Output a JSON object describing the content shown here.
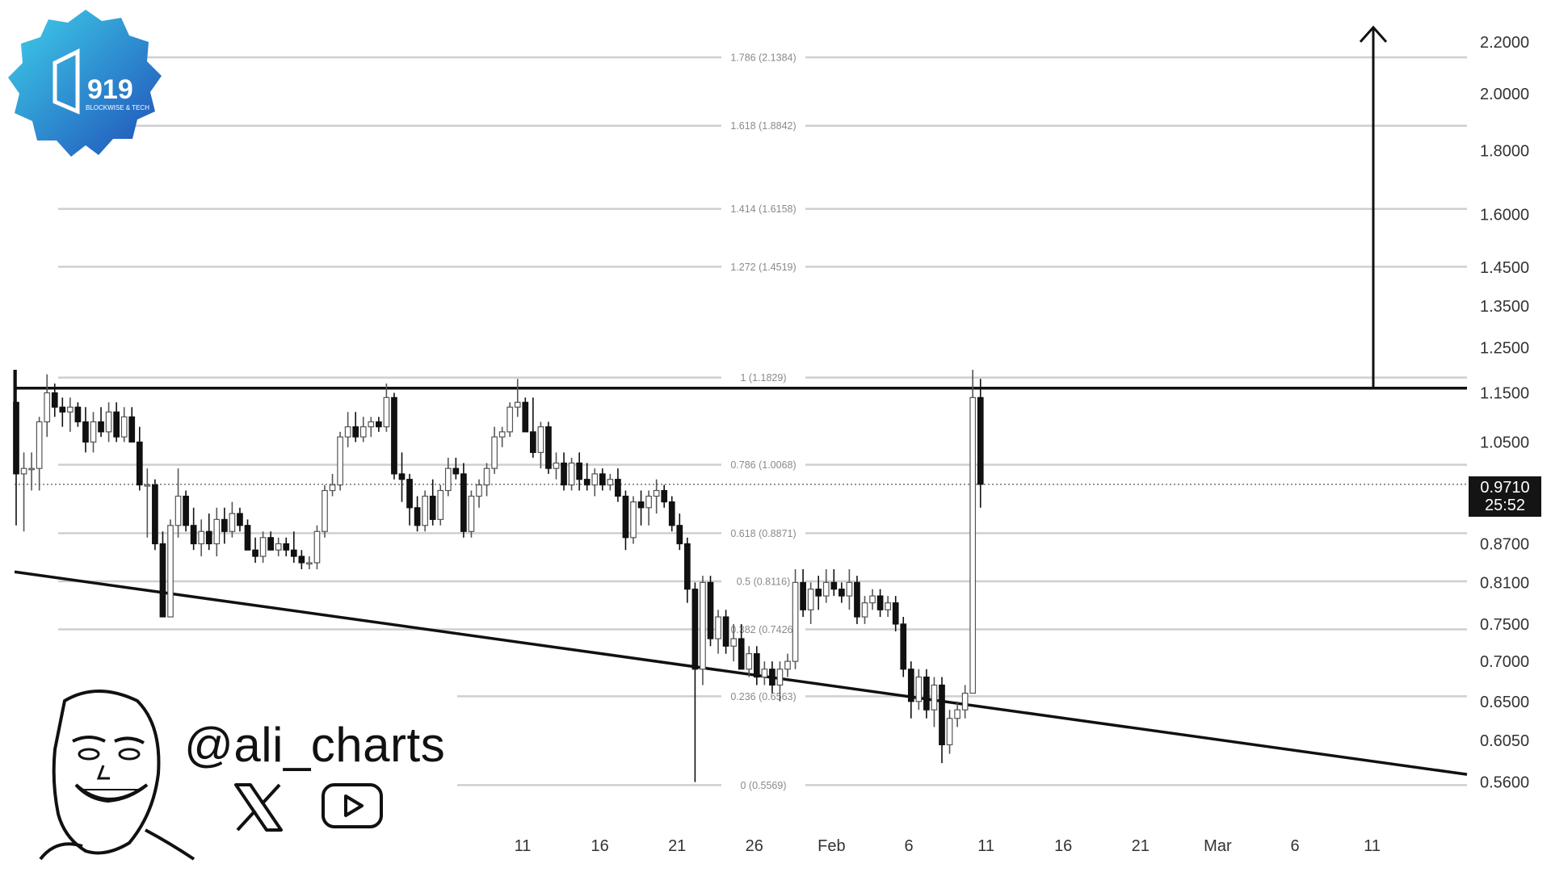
{
  "branding": {
    "logo_text": "919",
    "logo_subtext": "BLOCKWISE & TECH",
    "handle": "@ali_charts",
    "icons": [
      "x-logo-icon",
      "youtube-icon"
    ]
  },
  "current_price": {
    "value": "0.9710",
    "countdown": "25:52"
  },
  "chart_data": {
    "type": "candlestick",
    "title": "",
    "y_scale": "log",
    "ylim": [
      0.54,
      2.28
    ],
    "y_ticks": [
      "2.2000",
      "2.0000",
      "1.8000",
      "1.6000",
      "1.4500",
      "1.3500",
      "1.2500",
      "1.1500",
      "1.0500",
      "0.8700",
      "0.8100",
      "0.7500",
      "0.7000",
      "0.6500",
      "0.6050",
      "0.5600"
    ],
    "x_ticks": [
      "11",
      "16",
      "21",
      "26",
      "Feb",
      "6",
      "11",
      "16",
      "21",
      "Mar",
      "6",
      "11"
    ],
    "fib_levels": [
      {
        "ratio": 0,
        "price": 0.5569,
        "label": "0 (0.5569)"
      },
      {
        "ratio": 0.236,
        "price": 0.6563,
        "label": "0.236 (0.6563)"
      },
      {
        "ratio": 0.382,
        "price": 0.7426,
        "label": "0.382 (0.7426)"
      },
      {
        "ratio": 0.5,
        "price": 0.8116,
        "label": "0.5 (0.8116)"
      },
      {
        "ratio": 0.618,
        "price": 0.8871,
        "label": "0.618 (0.8871)"
      },
      {
        "ratio": 0.786,
        "price": 1.0068,
        "label": "0.786 (1.0068)"
      },
      {
        "ratio": 1,
        "price": 1.1829,
        "label": "1 (1.1829)"
      },
      {
        "ratio": 1.272,
        "price": 1.4519,
        "label": "1.272 (1.4519)"
      },
      {
        "ratio": 1.414,
        "price": 1.6158,
        "label": "1.414 (1.6158)"
      },
      {
        "ratio": 1.618,
        "price": 1.8842,
        "label": "1.618 (1.8842)"
      },
      {
        "ratio": 1.786,
        "price": 2.1384,
        "label": "1.786 (2.1384)"
      }
    ],
    "resistance_line_price": 1.16,
    "support_trendline": [
      {
        "day": 0,
        "price": 0.826
      },
      {
        "day": 62.5,
        "price": 0.568
      }
    ],
    "target_arrow": {
      "day": 59.5,
      "from_price": 1.16,
      "to_price": 2.26
    },
    "current_price_line": 0.971,
    "candles": [
      {
        "d": 0.0,
        "o": 1.13,
        "h": 1.2,
        "l": 0.9,
        "c": 0.99
      },
      {
        "d": 0.5,
        "o": 0.99,
        "h": 1.03,
        "l": 0.89,
        "c": 1.0
      },
      {
        "d": 1.0,
        "o": 1.0,
        "h": 1.03,
        "l": 0.96,
        "c": 1.0
      },
      {
        "d": 1.5,
        "o": 1.0,
        "h": 1.1,
        "l": 0.96,
        "c": 1.09
      },
      {
        "d": 2.0,
        "o": 1.09,
        "h": 1.19,
        "l": 1.06,
        "c": 1.15
      },
      {
        "d": 2.5,
        "o": 1.15,
        "h": 1.17,
        "l": 1.1,
        "c": 1.12
      },
      {
        "d": 3.0,
        "o": 1.12,
        "h": 1.14,
        "l": 1.08,
        "c": 1.11
      },
      {
        "d": 3.5,
        "o": 1.11,
        "h": 1.14,
        "l": 1.07,
        "c": 1.12
      },
      {
        "d": 4.0,
        "o": 1.12,
        "h": 1.13,
        "l": 1.08,
        "c": 1.09
      },
      {
        "d": 4.5,
        "o": 1.09,
        "h": 1.12,
        "l": 1.03,
        "c": 1.05
      },
      {
        "d": 5.0,
        "o": 1.05,
        "h": 1.11,
        "l": 1.03,
        "c": 1.09
      },
      {
        "d": 5.5,
        "o": 1.09,
        "h": 1.12,
        "l": 1.06,
        "c": 1.07
      },
      {
        "d": 6.0,
        "o": 1.07,
        "h": 1.13,
        "l": 1.05,
        "c": 1.11
      },
      {
        "d": 6.5,
        "o": 1.11,
        "h": 1.13,
        "l": 1.05,
        "c": 1.06
      },
      {
        "d": 7.0,
        "o": 1.06,
        "h": 1.12,
        "l": 1.05,
        "c": 1.1
      },
      {
        "d": 7.5,
        "o": 1.1,
        "h": 1.12,
        "l": 1.05,
        "c": 1.05
      },
      {
        "d": 8.0,
        "o": 1.05,
        "h": 1.08,
        "l": 0.96,
        "c": 0.97
      },
      {
        "d": 8.5,
        "o": 0.97,
        "h": 1.0,
        "l": 0.88,
        "c": 0.97
      },
      {
        "d": 9.0,
        "o": 0.97,
        "h": 0.98,
        "l": 0.86,
        "c": 0.87
      },
      {
        "d": 9.5,
        "o": 0.87,
        "h": 0.89,
        "l": 0.76,
        "c": 0.76
      },
      {
        "d": 10.0,
        "o": 0.76,
        "h": 0.91,
        "l": 0.76,
        "c": 0.9
      },
      {
        "d": 10.5,
        "o": 0.9,
        "h": 1.0,
        "l": 0.88,
        "c": 0.95
      },
      {
        "d": 11.0,
        "o": 0.95,
        "h": 0.96,
        "l": 0.89,
        "c": 0.9
      },
      {
        "d": 11.5,
        "o": 0.9,
        "h": 0.93,
        "l": 0.86,
        "c": 0.87
      },
      {
        "d": 12.0,
        "o": 0.87,
        "h": 0.91,
        "l": 0.85,
        "c": 0.89
      },
      {
        "d": 12.5,
        "o": 0.89,
        "h": 0.92,
        "l": 0.86,
        "c": 0.87
      },
      {
        "d": 13.0,
        "o": 0.87,
        "h": 0.93,
        "l": 0.85,
        "c": 0.91
      },
      {
        "d": 13.5,
        "o": 0.91,
        "h": 0.93,
        "l": 0.87,
        "c": 0.89
      },
      {
        "d": 14.0,
        "o": 0.89,
        "h": 0.94,
        "l": 0.88,
        "c": 0.92
      },
      {
        "d": 14.5,
        "o": 0.92,
        "h": 0.93,
        "l": 0.89,
        "c": 0.9
      },
      {
        "d": 15.0,
        "o": 0.9,
        "h": 0.91,
        "l": 0.86,
        "c": 0.86
      },
      {
        "d": 15.5,
        "o": 0.86,
        "h": 0.88,
        "l": 0.84,
        "c": 0.85
      },
      {
        "d": 16.0,
        "o": 0.85,
        "h": 0.89,
        "l": 0.84,
        "c": 0.88
      },
      {
        "d": 16.5,
        "o": 0.88,
        "h": 0.89,
        "l": 0.86,
        "c": 0.86
      },
      {
        "d": 17.0,
        "o": 0.86,
        "h": 0.88,
        "l": 0.85,
        "c": 0.87
      },
      {
        "d": 17.5,
        "o": 0.87,
        "h": 0.88,
        "l": 0.85,
        "c": 0.86
      },
      {
        "d": 18.0,
        "o": 0.86,
        "h": 0.89,
        "l": 0.84,
        "c": 0.85
      },
      {
        "d": 18.5,
        "o": 0.85,
        "h": 0.86,
        "l": 0.83,
        "c": 0.84
      },
      {
        "d": 19.0,
        "o": 0.84,
        "h": 0.85,
        "l": 0.83,
        "c": 0.84
      },
      {
        "d": 19.5,
        "o": 0.84,
        "h": 0.9,
        "l": 0.83,
        "c": 0.89
      },
      {
        "d": 20.0,
        "o": 0.89,
        "h": 0.97,
        "l": 0.88,
        "c": 0.96
      },
      {
        "d": 20.5,
        "o": 0.96,
        "h": 0.99,
        "l": 0.95,
        "c": 0.97
      },
      {
        "d": 21.0,
        "o": 0.97,
        "h": 1.07,
        "l": 0.96,
        "c": 1.06
      },
      {
        "d": 21.5,
        "o": 1.06,
        "h": 1.11,
        "l": 1.04,
        "c": 1.08
      },
      {
        "d": 22.0,
        "o": 1.08,
        "h": 1.11,
        "l": 1.05,
        "c": 1.06
      },
      {
        "d": 22.5,
        "o": 1.06,
        "h": 1.1,
        "l": 1.05,
        "c": 1.08
      },
      {
        "d": 23.0,
        "o": 1.08,
        "h": 1.1,
        "l": 1.06,
        "c": 1.09
      },
      {
        "d": 23.5,
        "o": 1.09,
        "h": 1.1,
        "l": 1.07,
        "c": 1.08
      },
      {
        "d": 24.0,
        "o": 1.08,
        "h": 1.17,
        "l": 1.07,
        "c": 1.14
      },
      {
        "d": 24.5,
        "o": 1.14,
        "h": 1.15,
        "l": 0.98,
        "c": 0.99
      },
      {
        "d": 25.0,
        "o": 0.99,
        "h": 1.03,
        "l": 0.94,
        "c": 0.98
      },
      {
        "d": 25.5,
        "o": 0.98,
        "h": 0.99,
        "l": 0.9,
        "c": 0.93
      },
      {
        "d": 26.0,
        "o": 0.93,
        "h": 0.95,
        "l": 0.89,
        "c": 0.9
      },
      {
        "d": 26.5,
        "o": 0.9,
        "h": 0.96,
        "l": 0.89,
        "c": 0.95
      },
      {
        "d": 27.0,
        "o": 0.95,
        "h": 0.98,
        "l": 0.9,
        "c": 0.91
      },
      {
        "d": 27.5,
        "o": 0.91,
        "h": 0.97,
        "l": 0.9,
        "c": 0.96
      },
      {
        "d": 28.0,
        "o": 0.96,
        "h": 1.02,
        "l": 0.95,
        "c": 1.0
      },
      {
        "d": 28.5,
        "o": 1.0,
        "h": 1.02,
        "l": 0.98,
        "c": 0.99
      },
      {
        "d": 29.0,
        "o": 0.99,
        "h": 1.01,
        "l": 0.88,
        "c": 0.89
      },
      {
        "d": 29.5,
        "o": 0.89,
        "h": 0.96,
        "l": 0.88,
        "c": 0.95
      },
      {
        "d": 30.0,
        "o": 0.95,
        "h": 0.98,
        "l": 0.93,
        "c": 0.97
      },
      {
        "d": 30.5,
        "o": 0.97,
        "h": 1.01,
        "l": 0.95,
        "c": 1.0
      },
      {
        "d": 31.0,
        "o": 1.0,
        "h": 1.08,
        "l": 0.99,
        "c": 1.06
      },
      {
        "d": 31.5,
        "o": 1.06,
        "h": 1.08,
        "l": 1.04,
        "c": 1.07
      },
      {
        "d": 32.0,
        "o": 1.07,
        "h": 1.13,
        "l": 1.06,
        "c": 1.12
      },
      {
        "d": 32.5,
        "o": 1.12,
        "h": 1.18,
        "l": 1.1,
        "c": 1.13
      },
      {
        "d": 33.0,
        "o": 1.13,
        "h": 1.14,
        "l": 1.07,
        "c": 1.07
      },
      {
        "d": 33.5,
        "o": 1.07,
        "h": 1.14,
        "l": 1.02,
        "c": 1.03
      },
      {
        "d": 34.0,
        "o": 1.03,
        "h": 1.09,
        "l": 1.0,
        "c": 1.08
      },
      {
        "d": 34.5,
        "o": 1.08,
        "h": 1.09,
        "l": 0.99,
        "c": 1.0
      },
      {
        "d": 35.0,
        "o": 1.0,
        "h": 1.03,
        "l": 0.98,
        "c": 1.01
      },
      {
        "d": 35.5,
        "o": 1.01,
        "h": 1.03,
        "l": 0.96,
        "c": 0.97
      },
      {
        "d": 36.0,
        "o": 0.97,
        "h": 1.02,
        "l": 0.96,
        "c": 1.01
      },
      {
        "d": 36.5,
        "o": 1.01,
        "h": 1.03,
        "l": 0.96,
        "c": 0.98
      },
      {
        "d": 37.0,
        "o": 0.98,
        "h": 1.01,
        "l": 0.96,
        "c": 0.97
      },
      {
        "d": 37.5,
        "o": 0.97,
        "h": 1.0,
        "l": 0.95,
        "c": 0.99
      },
      {
        "d": 38.0,
        "o": 0.99,
        "h": 1.0,
        "l": 0.96,
        "c": 0.97
      },
      {
        "d": 38.5,
        "o": 0.97,
        "h": 0.99,
        "l": 0.96,
        "c": 0.98
      },
      {
        "d": 39.0,
        "o": 0.98,
        "h": 1.0,
        "l": 0.94,
        "c": 0.95
      },
      {
        "d": 39.5,
        "o": 0.95,
        "h": 0.96,
        "l": 0.86,
        "c": 0.88
      },
      {
        "d": 40.0,
        "o": 0.88,
        "h": 0.95,
        "l": 0.87,
        "c": 0.94
      },
      {
        "d": 40.5,
        "o": 0.94,
        "h": 0.96,
        "l": 0.9,
        "c": 0.93
      },
      {
        "d": 41.0,
        "o": 0.93,
        "h": 0.96,
        "l": 0.9,
        "c": 0.95
      },
      {
        "d": 41.5,
        "o": 0.95,
        "h": 0.98,
        "l": 0.92,
        "c": 0.96
      },
      {
        "d": 42.0,
        "o": 0.96,
        "h": 0.97,
        "l": 0.93,
        "c": 0.94
      },
      {
        "d": 42.5,
        "o": 0.94,
        "h": 0.95,
        "l": 0.89,
        "c": 0.9
      },
      {
        "d": 43.0,
        "o": 0.9,
        "h": 0.92,
        "l": 0.86,
        "c": 0.87
      },
      {
        "d": 43.5,
        "o": 0.87,
        "h": 0.88,
        "l": 0.78,
        "c": 0.8
      },
      {
        "d": 44.0,
        "o": 0.8,
        "h": 0.81,
        "l": 0.56,
        "c": 0.69
      },
      {
        "d": 44.5,
        "o": 0.69,
        "h": 0.82,
        "l": 0.67,
        "c": 0.81
      },
      {
        "d": 45.0,
        "o": 0.81,
        "h": 0.82,
        "l": 0.72,
        "c": 0.73
      },
      {
        "d": 45.5,
        "o": 0.73,
        "h": 0.77,
        "l": 0.71,
        "c": 0.76
      },
      {
        "d": 46.0,
        "o": 0.76,
        "h": 0.77,
        "l": 0.71,
        "c": 0.72
      },
      {
        "d": 46.5,
        "o": 0.72,
        "h": 0.75,
        "l": 0.7,
        "c": 0.73
      },
      {
        "d": 47.0,
        "o": 0.73,
        "h": 0.75,
        "l": 0.69,
        "c": 0.69
      },
      {
        "d": 47.5,
        "o": 0.69,
        "h": 0.72,
        "l": 0.68,
        "c": 0.71
      },
      {
        "d": 48.0,
        "o": 0.71,
        "h": 0.72,
        "l": 0.67,
        "c": 0.68
      },
      {
        "d": 48.5,
        "o": 0.68,
        "h": 0.7,
        "l": 0.67,
        "c": 0.69
      },
      {
        "d": 49.0,
        "o": 0.69,
        "h": 0.7,
        "l": 0.66,
        "c": 0.67
      },
      {
        "d": 49.5,
        "o": 0.67,
        "h": 0.7,
        "l": 0.65,
        "c": 0.69
      },
      {
        "d": 50.0,
        "o": 0.69,
        "h": 0.71,
        "l": 0.68,
        "c": 0.7
      },
      {
        "d": 50.5,
        "o": 0.7,
        "h": 0.83,
        "l": 0.69,
        "c": 0.81
      },
      {
        "d": 51.0,
        "o": 0.81,
        "h": 0.83,
        "l": 0.76,
        "c": 0.77
      },
      {
        "d": 51.5,
        "o": 0.77,
        "h": 0.81,
        "l": 0.75,
        "c": 0.8
      },
      {
        "d": 52.0,
        "o": 0.8,
        "h": 0.82,
        "l": 0.77,
        "c": 0.79
      },
      {
        "d": 52.5,
        "o": 0.79,
        "h": 0.83,
        "l": 0.78,
        "c": 0.81
      },
      {
        "d": 53.0,
        "o": 0.81,
        "h": 0.83,
        "l": 0.79,
        "c": 0.8
      },
      {
        "d": 53.5,
        "o": 0.8,
        "h": 0.81,
        "l": 0.78,
        "c": 0.79
      },
      {
        "d": 54.0,
        "o": 0.79,
        "h": 0.83,
        "l": 0.77,
        "c": 0.81
      },
      {
        "d": 54.5,
        "o": 0.81,
        "h": 0.82,
        "l": 0.75,
        "c": 0.76
      },
      {
        "d": 55.0,
        "o": 0.76,
        "h": 0.79,
        "l": 0.75,
        "c": 0.78
      },
      {
        "d": 55.5,
        "o": 0.78,
        "h": 0.8,
        "l": 0.77,
        "c": 0.79
      },
      {
        "d": 56.0,
        "o": 0.79,
        "h": 0.8,
        "l": 0.76,
        "c": 0.77
      },
      {
        "d": 56.5,
        "o": 0.77,
        "h": 0.79,
        "l": 0.76,
        "c": 0.78
      },
      {
        "d": 57.0,
        "o": 0.78,
        "h": 0.79,
        "l": 0.74,
        "c": 0.75
      },
      {
        "d": 57.5,
        "o": 0.75,
        "h": 0.76,
        "l": 0.68,
        "c": 0.69
      },
      {
        "d": 58.0,
        "o": 0.69,
        "h": 0.7,
        "l": 0.63,
        "c": 0.65
      },
      {
        "d": 58.5,
        "o": 0.65,
        "h": 0.69,
        "l": 0.64,
        "c": 0.68
      },
      {
        "d": 59.0,
        "o": 0.68,
        "h": 0.69,
        "l": 0.63,
        "c": 0.64
      },
      {
        "d": 59.5,
        "o": 0.64,
        "h": 0.68,
        "l": 0.62,
        "c": 0.67
      },
      {
        "d": 60.0,
        "o": 0.67,
        "h": 0.68,
        "l": 0.58,
        "c": 0.6
      },
      {
        "d": 60.5,
        "o": 0.6,
        "h": 0.64,
        "l": 0.59,
        "c": 0.63
      },
      {
        "d": 61.0,
        "o": 0.63,
        "h": 0.65,
        "l": 0.62,
        "c": 0.64
      },
      {
        "d": 61.5,
        "o": 0.64,
        "h": 0.67,
        "l": 0.63,
        "c": 0.66
      },
      {
        "d": 62.0,
        "o": 0.66,
        "h": 1.2,
        "l": 0.66,
        "c": 1.14
      },
      {
        "d": 62.5,
        "o": 1.14,
        "h": 1.18,
        "l": 0.93,
        "c": 0.971
      }
    ]
  }
}
